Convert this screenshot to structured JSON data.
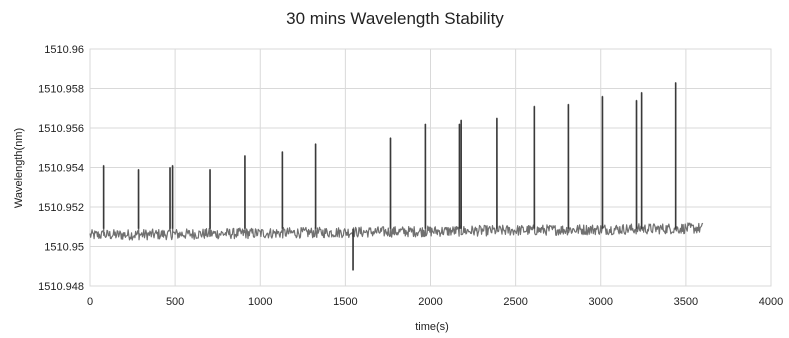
{
  "chart_data": {
    "type": "line",
    "title": "30 mins Wavelength Stability",
    "xlabel": "time(s)",
    "ylabel": "Wavelength(nm)",
    "xlim": [
      0,
      4000
    ],
    "ylim": [
      1510.948,
      1510.96
    ],
    "xticks": [
      "0",
      "500",
      "1000",
      "1500",
      "2000",
      "2500",
      "3000",
      "3500",
      "4000"
    ],
    "yticks": [
      "1510.948",
      "1510.95",
      "1510.952",
      "1510.954",
      "1510.956",
      "1510.958",
      "1510.96"
    ],
    "grid": true,
    "legend": "none",
    "line_color": "#707070",
    "series": [
      {
        "baseline_range": [
          1510.9503,
          1510.9512
        ],
        "baseline_x_range": [
          0,
          3600
        ],
        "spikes": [
          {
            "x": 80,
            "y": 1510.9541
          },
          {
            "x": 285,
            "y": 1510.9539
          },
          {
            "x": 470,
            "y": 1510.954
          },
          {
            "x": 485,
            "y": 1510.9541
          },
          {
            "x": 705,
            "y": 1510.9539
          },
          {
            "x": 910,
            "y": 1510.9546
          },
          {
            "x": 1130,
            "y": 1510.9548
          },
          {
            "x": 1325,
            "y": 1510.9552
          },
          {
            "x": 1545,
            "y": 1510.9488
          },
          {
            "x": 1765,
            "y": 1510.9555
          },
          {
            "x": 1970,
            "y": 1510.9562
          },
          {
            "x": 2170,
            "y": 1510.9562
          },
          {
            "x": 2180,
            "y": 1510.9564
          },
          {
            "x": 2390,
            "y": 1510.9565
          },
          {
            "x": 2610,
            "y": 1510.9571
          },
          {
            "x": 2810,
            "y": 1510.9572
          },
          {
            "x": 3010,
            "y": 1510.9576
          },
          {
            "x": 3210,
            "y": 1510.9574
          },
          {
            "x": 3240,
            "y": 1510.9578
          },
          {
            "x": 3440,
            "y": 1510.9583
          }
        ]
      }
    ]
  }
}
